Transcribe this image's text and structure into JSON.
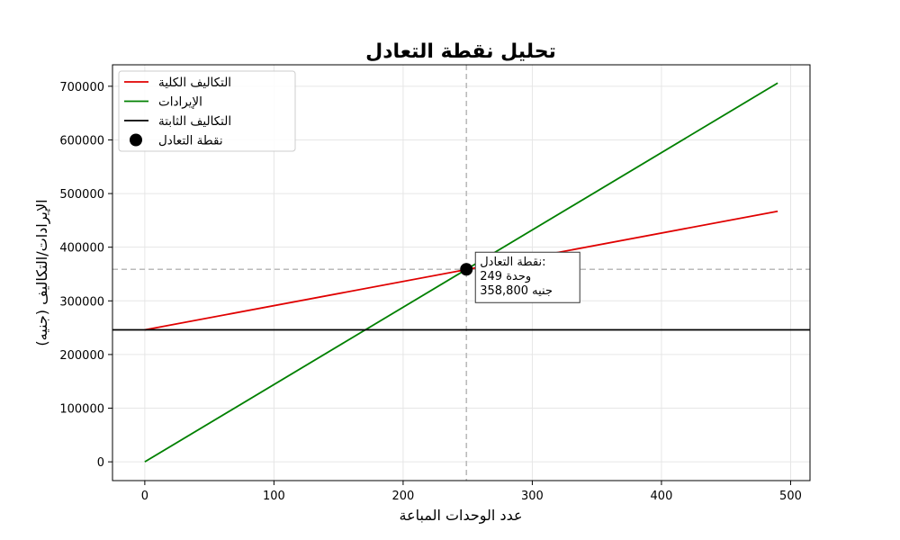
{
  "chart_data": {
    "type": "line",
    "title": "تحليل نقطة التعادل",
    "xlabel": "عدد الوحدات المباعة",
    "ylabel": "الإيرادات/التكاليف (جنيه)",
    "xlim": [
      -25,
      515
    ],
    "ylim": [
      -35000,
      740000
    ],
    "x_ticks": [
      0,
      100,
      200,
      300,
      400,
      500
    ],
    "y_ticks": [
      0,
      100000,
      200000,
      300000,
      400000,
      500000,
      600000,
      700000
    ],
    "x_tick_labels": [
      "0",
      "100",
      "200",
      "300",
      "400",
      "500"
    ],
    "y_tick_labels": [
      "0",
      "100000",
      "200000",
      "300000",
      "400000",
      "500000",
      "600000",
      "700000"
    ],
    "grid": true,
    "legend_position": "top-left",
    "series": [
      {
        "name": "التكاليف الكلية",
        "color": "#e00000",
        "kind": "line",
        "x": [
          0,
          490
        ],
        "y": [
          246000,
          467000
        ]
      },
      {
        "name": "الإيرادات",
        "color": "#008000",
        "kind": "line",
        "x": [
          0,
          490
        ],
        "y": [
          0,
          706000
        ]
      },
      {
        "name": "التكاليف الثابتة",
        "color": "#000000",
        "kind": "hline",
        "y": 246000
      },
      {
        "name": "نقطة التعادل",
        "color": "#000000",
        "kind": "point",
        "x": 249,
        "y": 358800
      }
    ],
    "reference_lines": {
      "vertical_x": 249,
      "horizontal_y": 358800,
      "color": "#bbbbbb"
    },
    "annotation": {
      "lines": [
        "نقطة التعادل:",
        "249 وحدة",
        "358,800 جنيه"
      ],
      "x": 249,
      "y": 358800
    }
  }
}
